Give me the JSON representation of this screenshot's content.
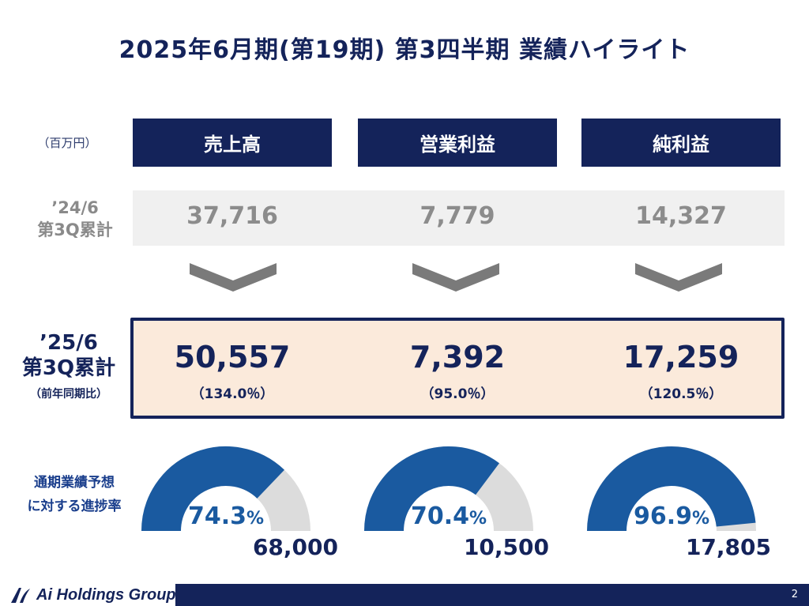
{
  "title": "2025年6月期(第19期) 第3四半期 業績ハイライト",
  "unit_label": "（百万円）",
  "headers": [
    "売上高",
    "営業利益",
    "純利益"
  ],
  "prev_period": {
    "label_line1": "’24/6",
    "label_line2": "第3Q累計",
    "values": [
      "37,716",
      "7,779",
      "14,327"
    ]
  },
  "current_period": {
    "label_line1": "’25/6",
    "label_line2": "第3Q累計",
    "label_line3": "（前年同期比）",
    "values": [
      "50,557",
      "7,392",
      "17,259"
    ],
    "yoy": [
      "（134.0％）",
      "（95.0％）",
      "（120.5％）"
    ]
  },
  "forecast": {
    "label_line1": "通期業績予想",
    "label_line2": "に対する進捗率",
    "gauges": [
      {
        "percent": 74.3,
        "percent_text": "74.3",
        "percent_symbol": "%",
        "target": "68,000"
      },
      {
        "percent": 70.4,
        "percent_text": "70.4",
        "percent_symbol": "%",
        "target": "10,500"
      },
      {
        "percent": 96.9,
        "percent_text": "96.9",
        "percent_symbol": "%",
        "target": "17,805"
      }
    ]
  },
  "colors": {
    "navy": "#14235a",
    "gauge_fill": "#1a5aa0",
    "gauge_track": "#dcdcdc",
    "highlight_bg": "#fbeadb"
  },
  "footer": {
    "logo_text": "Ai Holdings Group",
    "logo_icon": "ai-logo-icon",
    "page_number": "2"
  }
}
